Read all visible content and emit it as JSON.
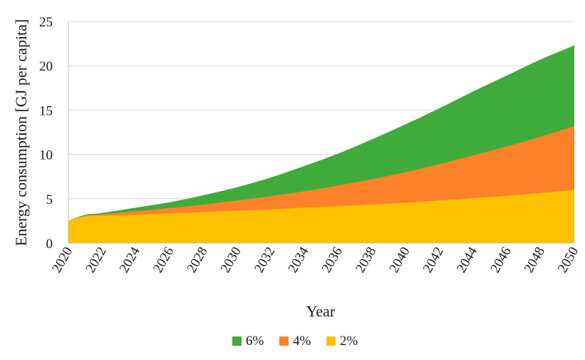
{
  "chart_data": {
    "type": "area",
    "stacked": false,
    "title": "",
    "xlabel": "Year",
    "ylabel": "Energy consumption [GJ per capita]",
    "ylim": [
      0,
      25
    ],
    "yticks": [
      0,
      5,
      10,
      15,
      20,
      25
    ],
    "xlim": [
      2020,
      2050
    ],
    "xticks": [
      2020,
      2022,
      2024,
      2026,
      2028,
      2030,
      2032,
      2034,
      2036,
      2038,
      2040,
      2042,
      2044,
      2046,
      2048,
      2050
    ],
    "grid": "horizontal",
    "legend_position": "bottom",
    "x": [
      2020,
      2021,
      2022,
      2024,
      2026,
      2028,
      2030,
      2032,
      2034,
      2036,
      2038,
      2040,
      2042,
      2044,
      2046,
      2048,
      2050
    ],
    "series": [
      {
        "name": "6%",
        "color": "#3fab3b",
        "values": [
          2.5,
          3.2,
          3.4,
          4.0,
          4.6,
          5.4,
          6.3,
          7.4,
          8.7,
          10.1,
          11.7,
          13.4,
          15.2,
          17.1,
          18.9,
          20.7,
          22.3
        ]
      },
      {
        "name": "4%",
        "color": "#fd8128",
        "values": [
          2.5,
          3.1,
          3.25,
          3.6,
          3.95,
          4.35,
          4.8,
          5.3,
          5.85,
          6.5,
          7.2,
          8.0,
          8.9,
          9.9,
          10.9,
          12.0,
          13.2
        ]
      },
      {
        "name": "2%",
        "color": "#fec100",
        "values": [
          2.5,
          3.0,
          3.1,
          3.2,
          3.35,
          3.5,
          3.65,
          3.8,
          4.0,
          4.15,
          4.35,
          4.55,
          4.8,
          5.05,
          5.35,
          5.65,
          6.0
        ]
      }
    ]
  }
}
